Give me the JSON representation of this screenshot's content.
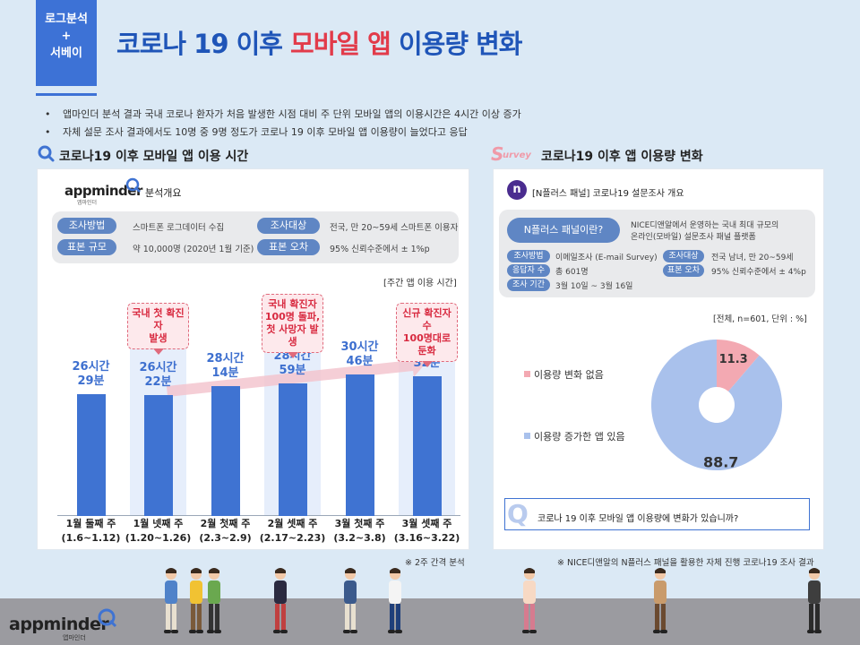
{
  "header": {
    "tag_lines": [
      "로그분석",
      "+",
      "서베이"
    ],
    "title_part1": "코로나 19 이후 ",
    "title_part2": "모바일 앱",
    "title_part3": " 이용량 변화",
    "bullets": [
      "앱마인더 분석 결과 국내 코로나 환자가 처음 발생한 시점 대비 주 단위 모바일 앱의 이용시간은 4시간 이상 증가",
      "자체 설문 조사 결과에서도 10명 중 9명 정도가 코로나 19 이후 모바일 앱 이용량이 늘었다고 응답"
    ]
  },
  "left": {
    "heading": "코로나19 이후 모바일 앱 이용 시간",
    "logo": "appminder",
    "logo_sub": "앱마인더",
    "overview_label": "분석개요",
    "method_label": "조사방법",
    "method_value": "스마트폰 로그데이터 수집",
    "target_label": "조사대상",
    "target_value": "전국, 만 20~59세 스마트폰 이용자",
    "sample_label": "표본 규모",
    "sample_value": "약 10,000명 (2020년 1월 기준)",
    "error_label": "표본 오차",
    "error_value": "95% 신뢰수준에서 ± 1%p",
    "unit_label": "[주간 앱 이용 시간]",
    "footnote": "※ 2주 간격 분석"
  },
  "chart_data": [
    {
      "type": "bar",
      "ylabel": "주간 앱 이용 시간",
      "categories": [
        "1월 둘째 주\n(1.6~1.12)",
        "1월 넷째 주\n(1.20~1.26)",
        "2월 첫째 주\n(2.3~2.9)",
        "2월 셋째 주\n(2.17~2.23)",
        "3월 첫째 주\n(3.2~3.8)",
        "3월 셋째 주\n(3.16~3.22)"
      ],
      "values_minutes": [
        1589,
        1582,
        1694,
        1739,
        1846,
        1832
      ],
      "value_labels": [
        "26시간\n29분",
        "26시간\n22분",
        "28시간\n14분",
        "28시간\n59분",
        "30시간\n46분",
        "30시간\n32분"
      ],
      "ylim_minutes": [
        0,
        3000
      ],
      "annotations": [
        {
          "category_index": 1,
          "text": "국내 첫 확진자\n발생"
        },
        {
          "category_index": 3,
          "text": "국내 확진자\n100명 돌파,\n첫 사망자 발생"
        },
        {
          "category_index": 5,
          "text": "신규 확진자 수\n100명대로 둔화"
        }
      ]
    },
    {
      "type": "pie",
      "title": "",
      "subtitle": "[전체, n=601, 단위 : %]",
      "labels": [
        "이용량 변화 없음",
        "이용량 증가한 앱 있음"
      ],
      "values": [
        11.3,
        88.7
      ],
      "colors": [
        "#f3a9b2",
        "#a9c1ec"
      ]
    }
  ],
  "right": {
    "survey_mark": "Survey",
    "heading": "코로나19 이후 앱 이용량 변화",
    "n_icon": "n",
    "overview_title": "[N플러스 패널] 코로나19 설문조사 개요",
    "panel_pill": "N플러스 패널이란?",
    "panel_desc_1": "NICE디앤알에서 운영하는 국내 최대 규모의",
    "panel_desc_2": "온라인(모바일) 설문조사 패널 플랫폼",
    "method_label": "조사방법",
    "method_value": "이메일조사 (E-mail Survey)",
    "target_label": "조사대상",
    "target_value": "전국 남녀, 만 20~59세",
    "resp_label": "응답자 수",
    "resp_value": "총 601명",
    "error_label": "표본 오차",
    "error_value": "95% 신뢰수준에서 ± 4%p",
    "period_label": "조사 기간",
    "period_value": "3월 10일 ~ 3월 16일",
    "q_mark": "Q",
    "question": "코로나 19 이후 모바일 앱 이용량에 변화가 있습니까?",
    "footnote": "※ NICE디앤알의 N플러스 패널을 활용한 자체 진행 코로나19 조사 결과"
  },
  "footer": {
    "logo": "appminder",
    "logo_sub": "앱마인더"
  },
  "colors": {
    "primary": "#3f73d2",
    "accent_red": "#e23b4a",
    "pie_pink": "#f3a9b2",
    "pie_blue": "#a9c1ec"
  }
}
